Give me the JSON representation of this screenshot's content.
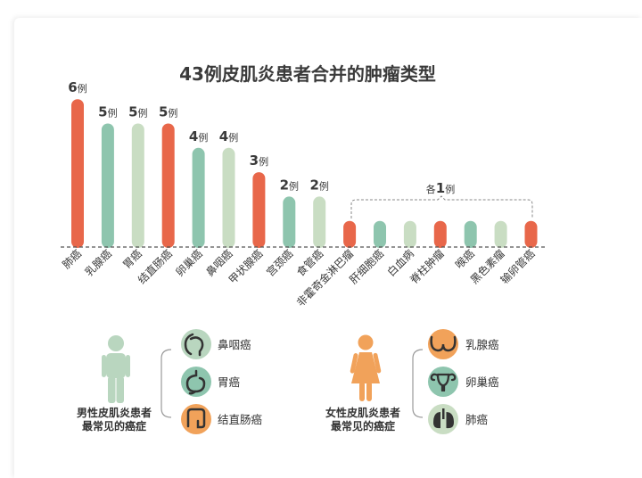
{
  "chart_data": {
    "type": "bar",
    "title": "43例皮肌炎患者合并的肿瘤类型",
    "unit": "例",
    "categories": [
      "肺癌",
      "乳腺癌",
      "胃癌",
      "结直肠癌",
      "卵巢癌",
      "鼻咽癌",
      "甲状腺癌",
      "宫颈癌",
      "食管癌",
      "非霍奇金淋巴瘤",
      "肝细胞癌",
      "白血病",
      "脊柱肿瘤",
      "喉癌",
      "黑色素瘤",
      "输卵管癌"
    ],
    "values": [
      6,
      5,
      5,
      5,
      4,
      4,
      3,
      2,
      2,
      1,
      1,
      1,
      1,
      1,
      1,
      1
    ],
    "group_annotation": {
      "prefix": "各",
      "value": "1",
      "unit": "例"
    },
    "ylim": [
      0,
      6
    ],
    "colors": {
      "orange": "#e8674a",
      "teal": "#8ec5ae",
      "sage": "#c9ddc3"
    },
    "bar_colors": [
      "#e8674a",
      "#8ec5ae",
      "#c9ddc3",
      "#e8674a",
      "#8ec5ae",
      "#c9ddc3",
      "#e8674a",
      "#8ec5ae",
      "#c9ddc3",
      "#e8674a",
      "#8ec5ae",
      "#c9ddc3",
      "#e8674a",
      "#8ec5ae",
      "#c9ddc3",
      "#e8674a"
    ]
  },
  "male_panel": {
    "caption_line1": "男性皮肌炎患者",
    "caption_line2": "最常见的癌症",
    "figure_color": "#b9d6bf",
    "items": [
      {
        "label": "鼻咽癌",
        "icon": "nasopharynx-icon",
        "color": "#b9d6bf"
      },
      {
        "label": "胃癌",
        "icon": "stomach-icon",
        "color": "#8ec5ae"
      },
      {
        "label": "结直肠癌",
        "icon": "intestine-icon",
        "color": "#f1a25a"
      }
    ]
  },
  "female_panel": {
    "caption_line1": "女性皮肌炎患者",
    "caption_line2": "最常见的癌症",
    "figure_color": "#f1a25a",
    "items": [
      {
        "label": "乳腺癌",
        "icon": "breast-icon",
        "color": "#f1a25a"
      },
      {
        "label": "卵巢癌",
        "icon": "uterus-ovary-icon",
        "color": "#8ec5ae"
      },
      {
        "label": "肺癌",
        "icon": "lungs-icon",
        "color": "#c9ddc3"
      }
    ]
  }
}
